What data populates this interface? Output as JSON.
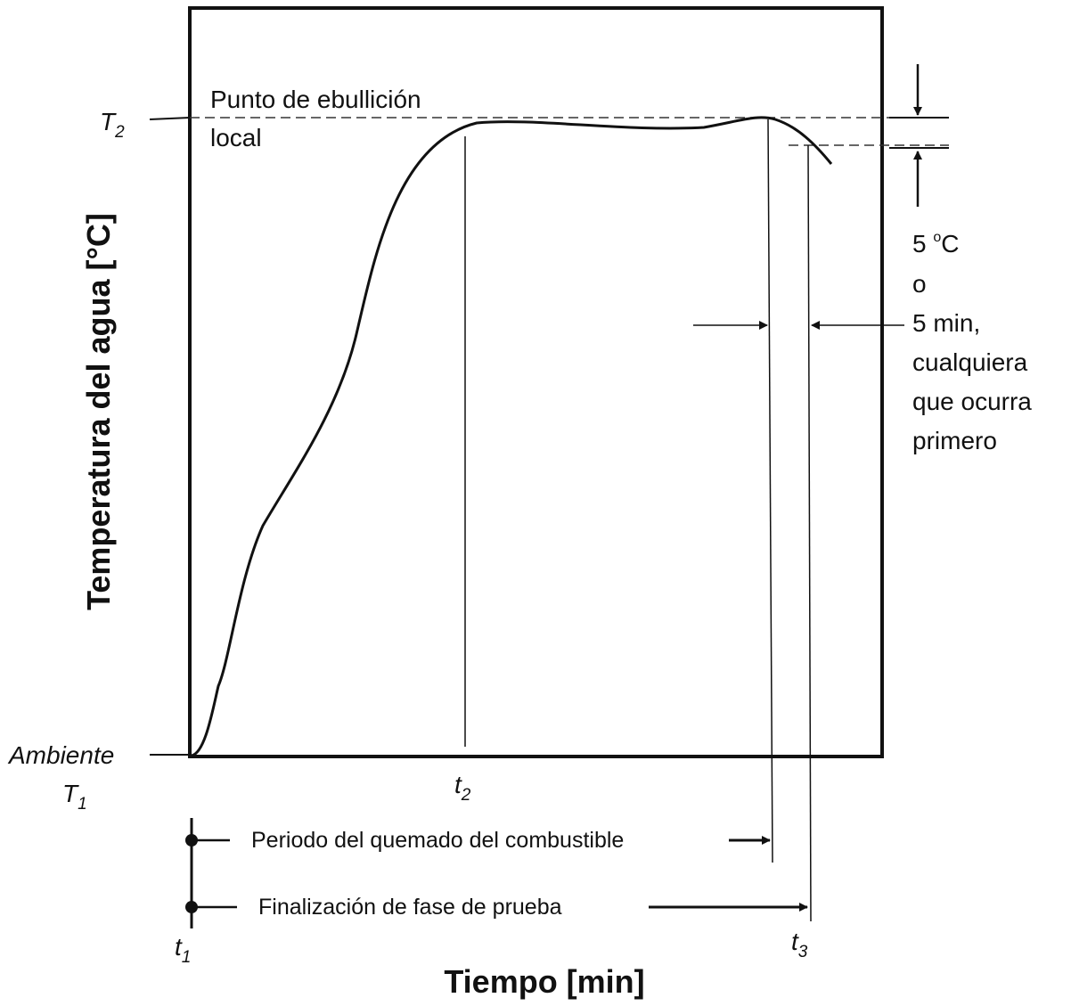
{
  "diagram": {
    "y_axis_label": "Temperatura del agua [°C]",
    "x_axis_label": "Tiempo [min]",
    "boiling_label": {
      "line1": "Punto de ebullición",
      "line2": "local"
    },
    "t2_level": {
      "symbol": "T",
      "sub": "2"
    },
    "ambient": {
      "word": "Ambiente",
      "symbol": "T",
      "sub": "1"
    },
    "time_marks": {
      "t1": {
        "symbol": "t",
        "sub": "1"
      },
      "t2": {
        "symbol": "t",
        "sub": "2"
      },
      "t3": {
        "symbol": "t",
        "sub": "3"
      }
    },
    "condition_note": {
      "line1_num": "5 ",
      "line1_deg": "o",
      "line1_unit": "C",
      "line2": "o",
      "line3": "5 min,",
      "line4": "cualquiera",
      "line5": "que ocurra",
      "line6": "primero"
    },
    "periods": {
      "fuel_burn": "Periodo del quemado del combustible",
      "test_end": "Finalización de fase de prueba"
    },
    "colors": {
      "ink": "#111111",
      "background": "#ffffff"
    }
  }
}
